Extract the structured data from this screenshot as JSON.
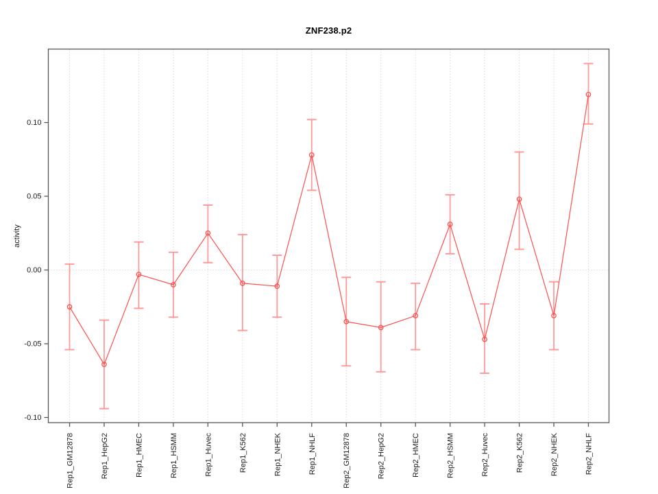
{
  "chart_data": {
    "type": "line",
    "title": "ZNF238.p2",
    "xlabel": "",
    "ylabel": "activity",
    "categories": [
      "Rep1_GM12878",
      "Rep1_HepG2",
      "Rep1_HMEC",
      "Rep1_HSMM",
      "Rep1_Huvec",
      "Rep1_K562",
      "Rep1_NHEK",
      "Rep1_NHLF",
      "Rep2_GM12878",
      "Rep2_HepG2",
      "Rep2_HMEC",
      "Rep2_HSMM",
      "Rep2_Huvec",
      "Rep2_K562",
      "Rep2_NHEK",
      "Rep2_NHLF"
    ],
    "series": [
      {
        "name": "activity",
        "values": [
          -0.025,
          -0.064,
          -0.003,
          -0.01,
          0.025,
          -0.009,
          -0.011,
          0.078,
          -0.035,
          -0.039,
          -0.031,
          0.031,
          -0.047,
          0.048,
          -0.031,
          0.119
        ],
        "lower": [
          -0.054,
          -0.094,
          -0.026,
          -0.032,
          0.005,
          -0.041,
          -0.032,
          0.054,
          -0.065,
          -0.069,
          -0.054,
          0.011,
          -0.07,
          0.014,
          -0.054,
          0.099
        ],
        "upper": [
          0.004,
          -0.034,
          0.019,
          0.012,
          0.044,
          0.024,
          0.01,
          0.102,
          -0.005,
          -0.008,
          -0.009,
          0.051,
          -0.023,
          0.08,
          -0.008,
          0.14
        ]
      }
    ],
    "ylim": [
      -0.1035,
      0.1498
    ],
    "yticks": [
      -0.1,
      -0.05,
      0.0,
      0.05,
      0.1
    ],
    "grid": "dotted vertical gridline at each category; dotted horizontal line at zero",
    "legend": "none",
    "marker": "open-circle",
    "colors": {
      "series": "#ff4d4d",
      "error_bar": "#ff9090",
      "grid": "#dadada",
      "frame": "#555555",
      "text": "#1a1a1a",
      "title": "#000000"
    }
  }
}
